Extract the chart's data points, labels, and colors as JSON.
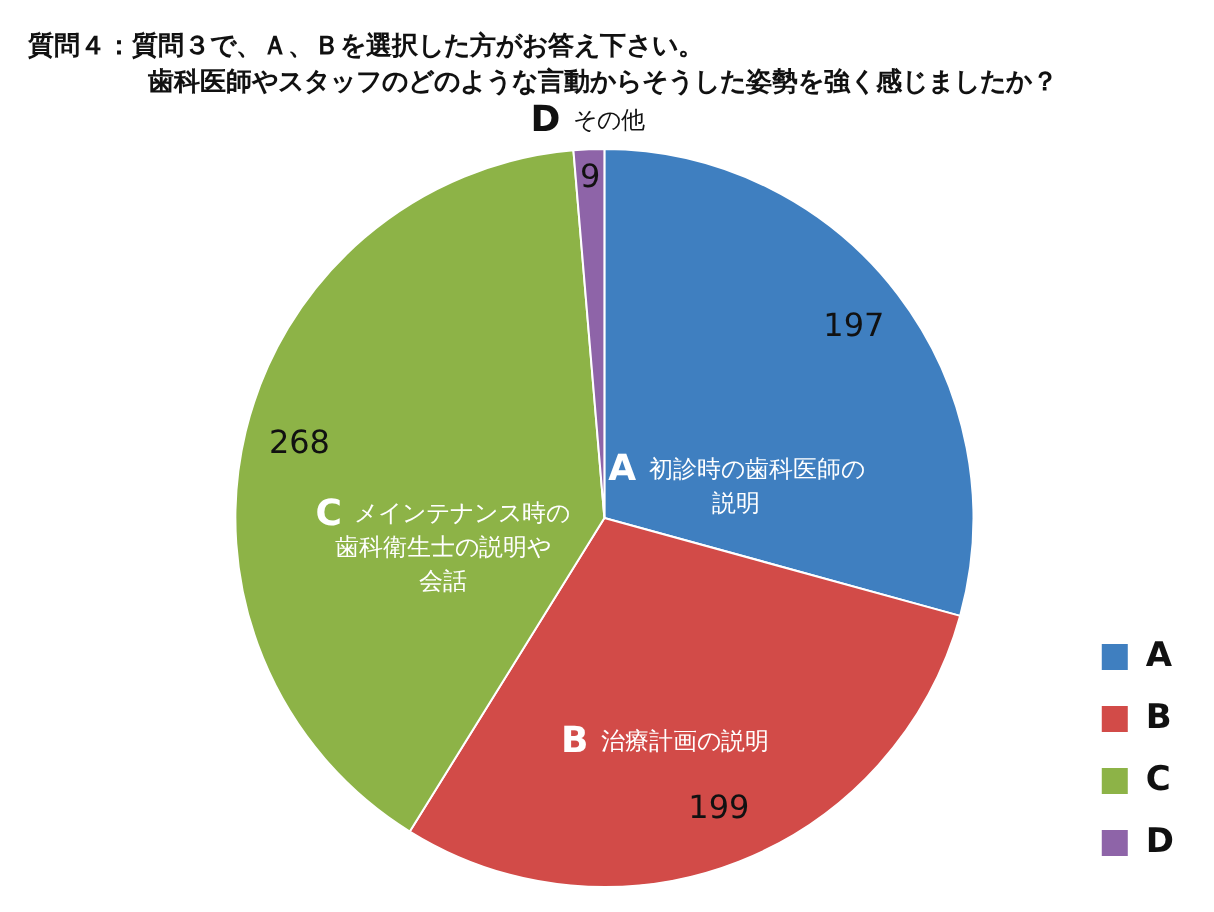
{
  "chart_data": {
    "type": "pie",
    "title": "質問４：質問３で、Ａ、Ｂを選択した方がお答え下さい。",
    "subtitle": "歯科医師やスタッフのどのような言動からそうした姿勢を強く感じましたか？",
    "categories": [
      "A",
      "B",
      "C",
      "D"
    ],
    "values": [
      197,
      199,
      268,
      9
    ],
    "colors": [
      "#3f7fc0",
      "#d24b48",
      "#8db347",
      "#8e64a8"
    ],
    "data_labels": true,
    "legend": "right",
    "annotations": [
      {
        "text": "初診時の歯科医師の説明",
        "x": "A"
      },
      {
        "text": "治療計画の説明",
        "x": "B"
      },
      {
        "text": "メインテナンス時の歯科衛生士の説明や会話",
        "x": "C"
      },
      {
        "text": "その他",
        "x": "D"
      }
    ]
  }
}
